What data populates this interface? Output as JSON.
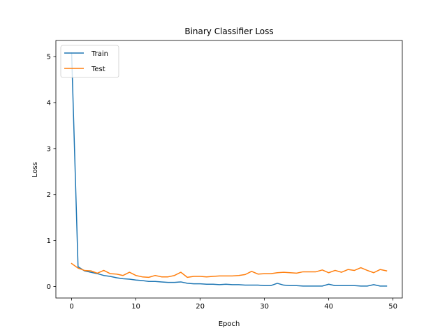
{
  "chart_data": {
    "type": "line",
    "title": "Binary Classifier Loss",
    "xlabel": "Epoch",
    "ylabel": "Loss",
    "xlim": [
      -2.45,
      51.45
    ],
    "ylim": [
      -0.25,
      5.35
    ],
    "xticks": [
      0,
      10,
      20,
      30,
      40,
      50
    ],
    "yticks": [
      0,
      1,
      2,
      3,
      4,
      5
    ],
    "grid": false,
    "legend_position": "top-left",
    "x": [
      0,
      1,
      2,
      3,
      4,
      5,
      6,
      7,
      8,
      9,
      10,
      11,
      12,
      13,
      14,
      15,
      16,
      17,
      18,
      19,
      20,
      21,
      22,
      23,
      24,
      25,
      26,
      27,
      28,
      29,
      30,
      31,
      32,
      33,
      34,
      35,
      36,
      37,
      38,
      39,
      40,
      41,
      42,
      43,
      44,
      45,
      46,
      47,
      48,
      49
    ],
    "series": [
      {
        "name": "Train",
        "color": "#1f77b4",
        "values": [
          5.08,
          0.43,
          0.34,
          0.31,
          0.28,
          0.24,
          0.22,
          0.19,
          0.17,
          0.16,
          0.14,
          0.13,
          0.11,
          0.11,
          0.1,
          0.09,
          0.09,
          0.1,
          0.07,
          0.06,
          0.06,
          0.05,
          0.05,
          0.04,
          0.05,
          0.04,
          0.04,
          0.03,
          0.03,
          0.03,
          0.02,
          0.02,
          0.07,
          0.03,
          0.02,
          0.02,
          0.01,
          0.01,
          0.01,
          0.01,
          0.05,
          0.02,
          0.02,
          0.02,
          0.02,
          0.01,
          0.01,
          0.04,
          0.01,
          0.01
        ]
      },
      {
        "name": "Test",
        "color": "#ff7f0e",
        "values": [
          0.5,
          0.4,
          0.35,
          0.34,
          0.29,
          0.35,
          0.28,
          0.27,
          0.24,
          0.31,
          0.24,
          0.21,
          0.2,
          0.24,
          0.21,
          0.21,
          0.24,
          0.31,
          0.2,
          0.22,
          0.22,
          0.21,
          0.22,
          0.23,
          0.23,
          0.23,
          0.24,
          0.26,
          0.33,
          0.27,
          0.28,
          0.28,
          0.3,
          0.31,
          0.3,
          0.29,
          0.32,
          0.32,
          0.32,
          0.36,
          0.3,
          0.35,
          0.31,
          0.37,
          0.35,
          0.41,
          0.35,
          0.3,
          0.37,
          0.34
        ]
      }
    ]
  }
}
